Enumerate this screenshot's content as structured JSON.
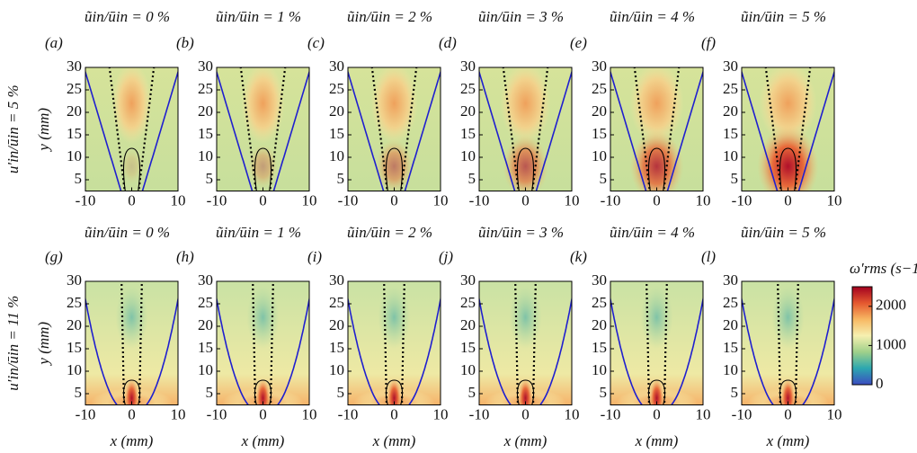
{
  "chart_data": [
    {
      "type": "heatmap",
      "panel": "(a)",
      "title": "ũin/ūin = 0 %",
      "row_label": "u′in/ūin = 5 %",
      "ylabel": "y (mm)",
      "xlim": [
        -10,
        10
      ],
      "ylim": [
        2.5,
        30
      ],
      "xticks": [
        -10,
        0,
        10
      ],
      "yticks": [
        5,
        10,
        15,
        20,
        25,
        30
      ]
    },
    {
      "type": "heatmap",
      "panel": "(b)",
      "title": "ũin/ūin = 1 %",
      "xlim": [
        -10,
        10
      ],
      "ylim": [
        2.5,
        30
      ],
      "xticks": [
        -10,
        0,
        10
      ],
      "yticks": [
        5,
        10,
        15,
        20,
        25,
        30
      ]
    },
    {
      "type": "heatmap",
      "panel": "(c)",
      "title": "ũin/ūin = 2 %",
      "xlim": [
        -10,
        10
      ],
      "ylim": [
        2.5,
        30
      ],
      "xticks": [
        -10,
        0,
        10
      ],
      "yticks": [
        5,
        10,
        15,
        20,
        25,
        30
      ]
    },
    {
      "type": "heatmap",
      "panel": "(d)",
      "title": "ũin/ūin = 3 %",
      "xlim": [
        -10,
        10
      ],
      "ylim": [
        2.5,
        30
      ],
      "xticks": [
        -10,
        0,
        10
      ],
      "yticks": [
        5,
        10,
        15,
        20,
        25,
        30
      ]
    },
    {
      "type": "heatmap",
      "panel": "(e)",
      "title": "ũin/ūin = 4 %",
      "xlim": [
        -10,
        10
      ],
      "ylim": [
        2.5,
        30
      ],
      "xticks": [
        -10,
        0,
        10
      ],
      "yticks": [
        5,
        10,
        15,
        20,
        25,
        30
      ]
    },
    {
      "type": "heatmap",
      "panel": "(f)",
      "title": "ũin/ūin = 5 %",
      "xlim": [
        -10,
        10
      ],
      "ylim": [
        2.5,
        30
      ],
      "xticks": [
        -10,
        0,
        10
      ],
      "yticks": [
        5,
        10,
        15,
        20,
        25,
        30
      ]
    },
    {
      "type": "heatmap",
      "panel": "(g)",
      "title": "ũin/ūin = 0 %",
      "row_label": "u′in/ūin = 11 %",
      "ylabel": "y (mm)",
      "xlabel": "x (mm)",
      "xlim": [
        -10,
        10
      ],
      "ylim": [
        2.5,
        30
      ],
      "xticks": [
        -10,
        0,
        10
      ],
      "yticks": [
        5,
        10,
        15,
        20,
        25,
        30
      ]
    },
    {
      "type": "heatmap",
      "panel": "(h)",
      "title": "ũin/ūin = 1 %",
      "xlabel": "x (mm)",
      "xlim": [
        -10,
        10
      ],
      "ylim": [
        2.5,
        30
      ],
      "xticks": [
        -10,
        0,
        10
      ],
      "yticks": [
        5,
        10,
        15,
        20,
        25,
        30
      ]
    },
    {
      "type": "heatmap",
      "panel": "(i)",
      "title": "ũin/ūin = 2 %",
      "xlabel": "x (mm)",
      "xlim": [
        -10,
        10
      ],
      "ylim": [
        2.5,
        30
      ],
      "xticks": [
        -10,
        0,
        10
      ],
      "yticks": [
        5,
        10,
        15,
        20,
        25,
        30
      ]
    },
    {
      "type": "heatmap",
      "panel": "(j)",
      "title": "ũin/ūin = 3 %",
      "xlabel": "x (mm)",
      "xlim": [
        -10,
        10
      ],
      "ylim": [
        2.5,
        30
      ],
      "xticks": [
        -10,
        0,
        10
      ],
      "yticks": [
        5,
        10,
        15,
        20,
        25,
        30
      ]
    },
    {
      "type": "heatmap",
      "panel": "(k)",
      "title": "ũin/ūin = 4 %",
      "xlabel": "x (mm)",
      "xlim": [
        -10,
        10
      ],
      "ylim": [
        2.5,
        30
      ],
      "xticks": [
        -10,
        0,
        10
      ],
      "yticks": [
        5,
        10,
        15,
        20,
        25,
        30
      ]
    },
    {
      "type": "heatmap",
      "panel": "(l)",
      "title": "ũin/ūin = 5 %",
      "xlabel": "x (mm)",
      "xlim": [
        -10,
        10
      ],
      "ylim": [
        2.5,
        30
      ],
      "xticks": [
        -10,
        0,
        10
      ],
      "yticks": [
        5,
        10,
        15,
        20,
        25,
        30
      ]
    },
    {
      "type": "colorbar",
      "label": "ω′rms (s−1)",
      "lim": [
        0,
        2500
      ],
      "ticks": [
        0,
        1000,
        2000
      ],
      "colors": [
        "#3b4cc0",
        "#2ca7b0",
        "#9fd08a",
        "#f6f0b0",
        "#f7b863",
        "#e4582f",
        "#a3001f"
      ]
    }
  ]
}
